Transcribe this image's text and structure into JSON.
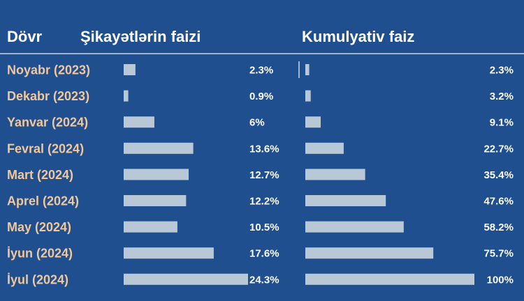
{
  "colors": {
    "background": "#1f4f8f",
    "bar": "#b8c8d6",
    "category_text": "#f2c79a",
    "value_text": "#ffffff",
    "header_text": "#ffffff",
    "divider": "#c9d6e3"
  },
  "headers": {
    "period": "Dövr",
    "share": "Şikayətlərin faizi",
    "cumulative": "Kumulyativ faiz"
  },
  "chart_data": [
    {
      "type": "bar",
      "orientation": "horizontal",
      "title": "Şikayətlərin faizi",
      "categories": [
        "Noyabr (2023)",
        "Dekabr (2023)",
        "Yanvar (2024)",
        "Fevral (2024)",
        "Mart (2024)",
        "Aprel (2024)",
        "May (2024)",
        "İyun (2024)",
        "İyul (2024)"
      ],
      "values": [
        2.3,
        0.9,
        6,
        13.6,
        12.7,
        12.2,
        10.5,
        17.6,
        24.3
      ],
      "labels": [
        "2.3%",
        "0.9%",
        "6%",
        "13.6%",
        "12.7%",
        "12.2%",
        "10.5%",
        "17.6%",
        "24.3%"
      ],
      "xlim": [
        0,
        24.3
      ]
    },
    {
      "type": "bar",
      "orientation": "horizontal",
      "title": "Kumulyativ faiz",
      "categories": [
        "Noyabr (2023)",
        "Dekabr (2023)",
        "Yanvar (2024)",
        "Fevral (2024)",
        "Mart (2024)",
        "Aprel (2024)",
        "May (2024)",
        "İyun (2024)",
        "İyul (2024)"
      ],
      "values": [
        2.3,
        3.2,
        9.1,
        22.7,
        35.4,
        47.6,
        58.2,
        75.7,
        100
      ],
      "labels": [
        "2.3%",
        "3.2%",
        "9.1%",
        "22.7%",
        "35.4%",
        "47.6%",
        "58.2%",
        "75.7%",
        "100%"
      ],
      "xlim": [
        0,
        100
      ]
    }
  ]
}
